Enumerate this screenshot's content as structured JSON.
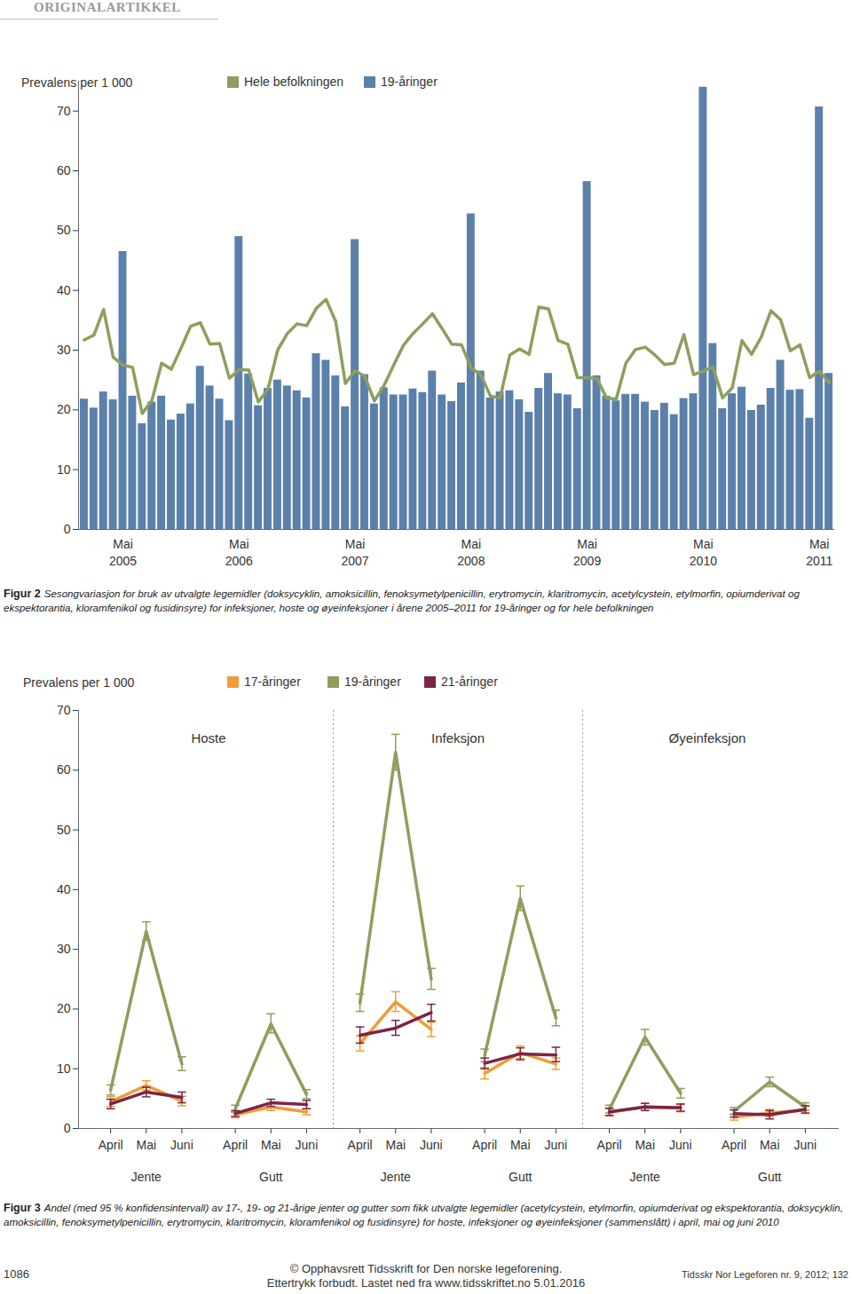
{
  "header": "ORIGINALARTIKKEL",
  "chart_data": [
    {
      "type": "bar",
      "caption_label": "Figur 2",
      "caption": "Sesongvariasjon for bruk av utvalgte legemidler (doksycyklin, amoksicillin, fenoksymetylpenicillin, erytromycin, klaritromycin, acetylcystein, etylmorfin, opiumderivat og ekspektorantia, kloramfenikol og fusidinsyre) for infeksjoner, hoste og øyeinfeksjoner i årene 2005–2011 for 19-åringer og for hele befolkningen",
      "y_label": "Prevalens per 1 000",
      "categories": [
        null,
        null,
        null,
        null,
        "Mai",
        null,
        null,
        null,
        null,
        null,
        null,
        null,
        null,
        null,
        null,
        null,
        "Mai",
        null,
        null,
        null,
        null,
        null,
        null,
        null,
        null,
        null,
        null,
        null,
        "Mai",
        null,
        null,
        null,
        null,
        null,
        null,
        null,
        null,
        null,
        null,
        null,
        "Mai",
        null,
        null,
        null,
        null,
        null,
        null,
        null,
        null,
        null,
        null,
        null,
        "Mai",
        null,
        null,
        null,
        null,
        null,
        null,
        null,
        null,
        null,
        null,
        null,
        "Mai",
        null,
        null,
        null,
        null,
        null,
        null,
        null,
        null,
        null,
        null,
        null,
        "Mai",
        null
      ],
      "years": [
        null,
        null,
        null,
        null,
        "2005",
        null,
        null,
        null,
        null,
        null,
        null,
        null,
        null,
        null,
        null,
        null,
        "2006",
        null,
        null,
        null,
        null,
        null,
        null,
        null,
        null,
        null,
        null,
        null,
        "2007",
        null,
        null,
        null,
        null,
        null,
        null,
        null,
        null,
        null,
        null,
        null,
        "2008",
        null,
        null,
        null,
        null,
        null,
        null,
        null,
        null,
        null,
        null,
        null,
        "2009",
        null,
        null,
        null,
        null,
        null,
        null,
        null,
        null,
        null,
        null,
        null,
        "2010",
        null,
        null,
        null,
        null,
        null,
        null,
        null,
        null,
        null,
        null,
        null,
        "2011",
        null
      ],
      "series": [
        {
          "name": "Hele befolkningen",
          "type": "line",
          "color": "#8e9e5e",
          "values": [
            31.7,
            32.5,
            36.8,
            28.8,
            27.5,
            27.1,
            19.4,
            21.6,
            27.8,
            26.8,
            30.3,
            34.0,
            34.6,
            31.0,
            31.1,
            25.3,
            26.7,
            26.7,
            21.3,
            23.5,
            30.0,
            32.8,
            34.4,
            34.1,
            37.0,
            38.5,
            34.8,
            24.4,
            26.6,
            25.6,
            21.5,
            24.1,
            27.5,
            30.8,
            32.8,
            34.4,
            36.1,
            33.6,
            31.0,
            30.9,
            27.0,
            25.9,
            22.3,
            22.0,
            29.2,
            30.2,
            29.3,
            37.2,
            36.9,
            31.6,
            31.0,
            25.4,
            25.4,
            25.3,
            22.0,
            21.8,
            27.8,
            30.1,
            30.5,
            29.2,
            27.6,
            27.8,
            32.6,
            25.9,
            26.5,
            27.2,
            22.0,
            23.7,
            31.6,
            29.3,
            32.2,
            36.6,
            35.1,
            29.9,
            30.9,
            25.4,
            26.5,
            24.6
          ]
        },
        {
          "name": "19-åringer",
          "type": "bar",
          "color": "#5b80ab",
          "values": [
            21.8,
            20.3,
            23.0,
            21.7,
            46.5,
            22.3,
            17.7,
            21.3,
            22.3,
            18.3,
            19.3,
            21.0,
            27.3,
            24.0,
            21.8,
            18.2,
            49.0,
            26.0,
            20.7,
            23.6,
            25.0,
            24.0,
            23.2,
            22.0,
            29.4,
            28.3,
            25.7,
            20.5,
            48.5,
            25.9,
            21.0,
            23.7,
            22.5,
            22.5,
            23.5,
            22.9,
            26.5,
            22.5,
            21.4,
            24.5,
            52.8,
            26.5,
            22.0,
            23.0,
            23.2,
            21.7,
            19.6,
            23.6,
            26.1,
            22.7,
            22.5,
            20.2,
            58.2,
            25.7,
            22.3,
            21.5,
            22.6,
            22.6,
            21.3,
            19.9,
            21.1,
            19.2,
            21.9,
            22.7,
            74.0,
            31.1,
            20.2,
            22.7,
            23.8,
            19.9,
            20.8,
            23.6,
            28.3,
            23.3,
            23.4,
            18.6,
            70.7,
            26.1
          ]
        }
      ],
      "ylim": [
        0,
        75
      ],
      "yticks": [
        0,
        10,
        20,
        30,
        40,
        50,
        60,
        70
      ],
      "grid": false
    },
    {
      "type": "line",
      "caption_label": "Figur 3",
      "caption": "Andel (med 95 % konfidensintervall) av 17-, 19- og 21-årige jenter og gutter som fikk utvalgte legemidler (acetylcystein, etylmorfin, opiumderivat og ekspektorantia, doksycyklin, amoksicillin, fenoksymetylpenicillin, erytromycin, klaritromycin, kloramfenikol og fusidinsyre) for hoste, infeksjoner og øyeinfeksjoner (sammenslått) i april, mai og juni 2010",
      "y_label": "Prevalens per 1 000",
      "groups": [
        {
          "title": "Hoste",
          "panels": [
            "Jente",
            "Gutt"
          ]
        },
        {
          "title": "Infeksjon",
          "panels": [
            "Jente",
            "Gutt"
          ]
        },
        {
          "title": "Øyeinfeksjon",
          "panels": [
            "Jente",
            "Gutt"
          ]
        }
      ],
      "categories": [
        "April",
        "Mai",
        "Juni"
      ],
      "series": [
        {
          "name": "17-åringer",
          "color": "#f29b38",
          "values": [
            [
              4.5,
              7.2,
              4.6
            ],
            [
              2.3,
              3.6,
              2.8
            ],
            [
              14.2,
              21.2,
              16.6
            ],
            [
              9.2,
              12.7,
              10.8
            ],
            [
              2.7,
              3.6,
              3.4
            ],
            [
              1.9,
              2.6,
              3.1
            ]
          ],
          "ci_low": [
            [
              3.7,
              6.4,
              3.8
            ],
            [
              1.8,
              3.0,
              2.3
            ],
            [
              13.0,
              19.6,
              15.4
            ],
            [
              8.3,
              11.7,
              9.9
            ],
            [
              2.1,
              3.0,
              2.8
            ],
            [
              1.4,
              2.0,
              2.5
            ]
          ],
          "ci_high": [
            [
              5.3,
              8.0,
              5.4
            ],
            [
              2.8,
              4.2,
              3.3
            ],
            [
              15.5,
              22.9,
              17.8
            ],
            [
              10.2,
              13.8,
              11.8
            ],
            [
              3.3,
              4.2,
              4.0
            ],
            [
              2.4,
              3.2,
              3.7
            ]
          ]
        },
        {
          "name": "19-åringer",
          "color": "#8e9e5e",
          "values": [
            [
              6.4,
              33.0,
              10.8
            ],
            [
              3.3,
              17.5,
              5.7
            ],
            [
              21.0,
              63.0,
              25.0
            ],
            [
              12.2,
              38.5,
              18.5
            ],
            [
              3.2,
              15.3,
              5.9
            ],
            [
              2.9,
              7.8,
              3.6
            ]
          ],
          "ci_low": [
            [
              5.6,
              31.5,
              9.7
            ],
            [
              2.7,
              16.0,
              5.0
            ],
            [
              19.6,
              60.0,
              23.3
            ],
            [
              11.2,
              36.5,
              17.2
            ],
            [
              2.6,
              14.0,
              5.1
            ],
            [
              2.3,
              7.0,
              3.0
            ]
          ],
          "ci_high": [
            [
              7.3,
              34.6,
              12.0
            ],
            [
              3.9,
              19.2,
              6.5
            ],
            [
              22.5,
              66.0,
              26.8
            ],
            [
              13.3,
              40.6,
              19.8
            ],
            [
              3.9,
              16.6,
              6.7
            ],
            [
              3.5,
              8.6,
              4.3
            ]
          ]
        },
        {
          "name": "21-åringer",
          "color": "#7b2546",
          "values": [
            [
              4.1,
              6.1,
              5.2
            ],
            [
              2.5,
              4.3,
              4.0
            ],
            [
              15.6,
              16.8,
              19.4
            ],
            [
              10.9,
              12.5,
              12.3
            ],
            [
              2.8,
              3.6,
              3.5
            ],
            [
              2.5,
              2.3,
              3.2
            ]
          ],
          "ci_low": [
            [
              3.3,
              5.3,
              4.3
            ],
            [
              2.0,
              3.7,
              3.3
            ],
            [
              14.3,
              15.6,
              18.0
            ],
            [
              10.0,
              11.5,
              11.2
            ],
            [
              2.2,
              3.0,
              2.9
            ],
            [
              1.9,
              1.6,
              2.6
            ]
          ],
          "ci_high": [
            [
              4.9,
              6.9,
              6.1
            ],
            [
              3.0,
              4.9,
              4.7
            ],
            [
              17.0,
              18.1,
              20.8
            ],
            [
              11.8,
              13.5,
              13.6
            ],
            [
              3.4,
              4.2,
              4.1
            ],
            [
              3.1,
              3.0,
              3.8
            ]
          ]
        }
      ],
      "ylim": [
        0,
        70
      ],
      "yticks": [
        0,
        10,
        20,
        30,
        40,
        50,
        60,
        70
      ],
      "grid": false
    }
  ],
  "footer": {
    "page": "1086",
    "copyright": [
      "© Opphavsrett Tidsskrift for Den norske legeforening.",
      "Ettertrykk forbudt. Lastet ned fra www.tidsskriftet.no 5.01.2016"
    ],
    "journal": "Tidsskr Nor Legeforen nr. 9, 2012; 132"
  }
}
